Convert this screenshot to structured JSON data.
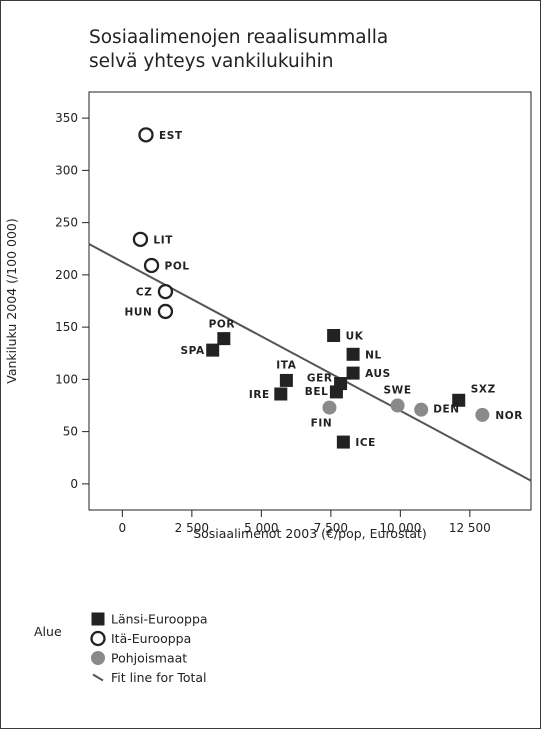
{
  "chart_data": {
    "type": "scatter",
    "title_lines": [
      "Sosiaalimenojen reaalisummalla",
      "selvä yhteys vankilukuihin"
    ],
    "xlabel": "Sosiaalimenot 2003 (€/pop, Eurostat)",
    "ylabel": "Vankiluku 2004 (/100 000)",
    "xlim": [
      -1200,
      14700
    ],
    "ylim": [
      -25,
      375
    ],
    "xticks": [
      0,
      2500,
      5000,
      7500,
      10000,
      12500
    ],
    "xtick_labels": [
      "0",
      "2 500",
      "5 000",
      "7 500",
      "10 000",
      "12 500"
    ],
    "yticks": [
      0,
      50,
      100,
      150,
      200,
      250,
      300,
      350
    ],
    "ytick_labels": [
      "0",
      "50",
      "100",
      "150",
      "200",
      "250",
      "300",
      "350"
    ],
    "grid": false,
    "legend_title": "Alue",
    "legend_position": "bottom-left",
    "series": [
      {
        "name": "Länsi-Eurooppa",
        "marker": "filled-square",
        "color": "#222222",
        "points": [
          {
            "label": "SPA",
            "x": 3250,
            "y": 128
          },
          {
            "label": "POR",
            "x": 3650,
            "y": 139
          },
          {
            "label": "IRE",
            "x": 5700,
            "y": 86
          },
          {
            "label": "ITA",
            "x": 5900,
            "y": 99
          },
          {
            "label": "UK",
            "x": 7600,
            "y": 142
          },
          {
            "label": "NL",
            "x": 8300,
            "y": 124
          },
          {
            "label": "AUS",
            "x": 8300,
            "y": 106
          },
          {
            "label": "GER",
            "x": 7850,
            "y": 96
          },
          {
            "label": "BEL",
            "x": 7700,
            "y": 88
          },
          {
            "label": "ICE",
            "x": 7950,
            "y": 40
          },
          {
            "label": "SXZ",
            "x": 12100,
            "y": 80
          }
        ]
      },
      {
        "name": "Itä-Eurooppa",
        "marker": "open-circle",
        "color": "#222222",
        "points": [
          {
            "label": "EST",
            "x": 850,
            "y": 334
          },
          {
            "label": "LIT",
            "x": 650,
            "y": 234
          },
          {
            "label": "POL",
            "x": 1050,
            "y": 209
          },
          {
            "label": "CZ",
            "x": 1550,
            "y": 184
          },
          {
            "label": "HUN",
            "x": 1550,
            "y": 165
          }
        ]
      },
      {
        "name": "Pohjoismaat",
        "marker": "filled-circle",
        "color": "#8a8a8a",
        "points": [
          {
            "label": "FIN",
            "x": 7450,
            "y": 73
          },
          {
            "label": "SWE",
            "x": 9900,
            "y": 75
          },
          {
            "label": "DEN",
            "x": 10750,
            "y": 71
          },
          {
            "label": "NOR",
            "x": 12950,
            "y": 66
          }
        ]
      }
    ],
    "fit_line": {
      "name": "Fit line for Total",
      "color": "#555555",
      "x": [
        -1200,
        14700
      ],
      "y": [
        229.5,
        3
      ]
    }
  }
}
